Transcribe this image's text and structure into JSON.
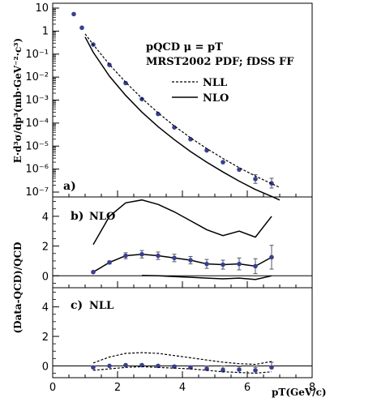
{
  "chart_data": [
    {
      "panel": "a)",
      "type": "scatter",
      "ylabel": "E·d³σ/dp³(mb·GeV⁻²·c³)",
      "ylog": true,
      "ylim": [
        1e-07,
        10
      ],
      "xlim": [
        0,
        8
      ],
      "ytick_labels": [
        "10",
        "1",
        "10⁻¹",
        "10⁻²",
        "10⁻³",
        "10⁻⁴",
        "10⁻⁵",
        "10⁻⁶",
        "10⁻⁷"
      ],
      "annotation_lines": [
        "pQCD  μ = pT",
        "MRST2002 PDF; fDSS FF"
      ],
      "legend": [
        "NLL",
        "NLO"
      ],
      "series": [
        {
          "name": "data",
          "style": "points",
          "x": [
            0.65,
            0.9,
            1.25,
            1.75,
            2.25,
            2.75,
            3.25,
            3.75,
            4.25,
            4.75,
            5.25,
            5.75,
            6.25,
            6.75
          ],
          "y": [
            5.5,
            1.4,
            0.26,
            0.034,
            0.0055,
            0.0011,
            0.00025,
            6.5e-05,
            2e-05,
            6.5e-06,
            2e-06,
            9.5e-07,
            3.7e-07,
            2.4e-07
          ],
          "err_lo": [
            0,
            0,
            0,
            0,
            0,
            0,
            0,
            0,
            0,
            0,
            0,
            0,
            1.3e-07,
            9e-08
          ],
          "err_hi": [
            0,
            0,
            0,
            0,
            0,
            0,
            0,
            0,
            0,
            0,
            0,
            0,
            2e-07,
            1.6e-07
          ]
        },
        {
          "name": "NLL",
          "style": "dashed",
          "x": [
            1.0,
            1.25,
            1.75,
            2.25,
            2.75,
            3.25,
            3.75,
            4.25,
            4.75,
            5.25,
            5.75,
            6.25,
            6.75,
            7.0
          ],
          "y": [
            0.75,
            0.26,
            0.035,
            0.006,
            0.0012,
            0.00028,
            7.5e-05,
            2.3e-05,
            7.8e-06,
            2.9e-06,
            1.15e-06,
            5e-07,
            2.3e-07,
            1.6e-07
          ]
        },
        {
          "name": "NLO",
          "style": "solid",
          "x": [
            1.0,
            1.25,
            1.75,
            2.25,
            2.75,
            3.25,
            3.75,
            4.25,
            4.75,
            5.25,
            5.75,
            6.25,
            6.75,
            7.0
          ],
          "y": [
            0.55,
            0.12,
            0.011,
            0.0016,
            0.0003,
            7e-05,
            1.9e-05,
            5.8e-06,
            2e-06,
            7.5e-07,
            3e-07,
            1.3e-07,
            6.5e-08,
            4.5e-08
          ]
        }
      ]
    },
    {
      "panel": "b)",
      "label": "NLO",
      "type": "line",
      "ylabel": "(Data-QCD)/QCD",
      "ylim": [
        -0.8,
        5.3
      ],
      "yticks": [
        0,
        2,
        4
      ],
      "series": [
        {
          "name": "data",
          "style": "points-line",
          "x": [
            1.25,
            1.75,
            2.25,
            2.75,
            3.25,
            3.75,
            4.25,
            4.75,
            5.25,
            5.75,
            6.25,
            6.75
          ],
          "y": [
            0.25,
            0.9,
            1.35,
            1.45,
            1.35,
            1.2,
            1.05,
            0.8,
            0.75,
            0.8,
            0.65,
            1.25
          ],
          "err": [
            0.05,
            0.1,
            0.2,
            0.25,
            0.25,
            0.25,
            0.25,
            0.3,
            0.3,
            0.4,
            0.5,
            0.8
          ]
        },
        {
          "name": "upper",
          "style": "solid",
          "x": [
            1.25,
            1.75,
            2.25,
            2.75,
            3.25,
            3.75,
            4.25,
            4.75,
            5.25,
            5.75,
            6.25,
            6.75
          ],
          "y": [
            2.1,
            4.0,
            4.9,
            5.1,
            4.8,
            4.3,
            3.7,
            3.1,
            2.7,
            3.0,
            2.6,
            4.0
          ]
        },
        {
          "name": "lower",
          "style": "solid",
          "x": [
            2.75,
            3.25,
            3.75,
            4.25,
            4.75,
            5.25,
            5.75,
            6.25,
            6.75
          ],
          "y": [
            0.02,
            0.0,
            -0.05,
            -0.1,
            -0.15,
            -0.2,
            -0.15,
            -0.25,
            0.0
          ]
        }
      ]
    },
    {
      "panel": "c)",
      "label": "NLL",
      "type": "line",
      "xlabel": "pT(GeV/c)",
      "ylim": [
        -0.8,
        5.3
      ],
      "yticks": [
        0,
        2,
        4
      ],
      "xticks": [
        0,
        2,
        4,
        6,
        8
      ],
      "series": [
        {
          "name": "data",
          "style": "points",
          "x": [
            1.25,
            1.75,
            2.25,
            2.75,
            3.25,
            3.75,
            4.25,
            4.75,
            5.25,
            5.75,
            6.25,
            6.75
          ],
          "y": [
            -0.1,
            0.0,
            0.05,
            0.05,
            0.0,
            -0.05,
            -0.1,
            -0.2,
            -0.3,
            -0.25,
            -0.3,
            -0.1
          ],
          "err": [
            0.05,
            0.05,
            0.05,
            0.08,
            0.08,
            0.1,
            0.1,
            0.12,
            0.15,
            0.2,
            0.2,
            0.35
          ]
        },
        {
          "name": "upper",
          "style": "dashed",
          "x": [
            1.25,
            1.75,
            2.25,
            2.75,
            3.25,
            3.75,
            4.25,
            4.75,
            5.25,
            5.75,
            6.25,
            6.75
          ],
          "y": [
            0.2,
            0.6,
            0.85,
            0.9,
            0.85,
            0.7,
            0.55,
            0.4,
            0.25,
            0.15,
            0.1,
            0.3
          ]
        },
        {
          "name": "lower",
          "style": "dashed",
          "x": [
            1.25,
            1.75,
            2.25,
            2.75,
            3.25,
            3.75,
            4.25,
            4.75,
            5.25,
            5.75,
            6.25,
            6.75
          ],
          "y": [
            -0.3,
            -0.2,
            -0.1,
            -0.05,
            -0.1,
            -0.15,
            -0.2,
            -0.3,
            -0.4,
            -0.45,
            -0.5,
            -0.4
          ]
        }
      ]
    }
  ]
}
